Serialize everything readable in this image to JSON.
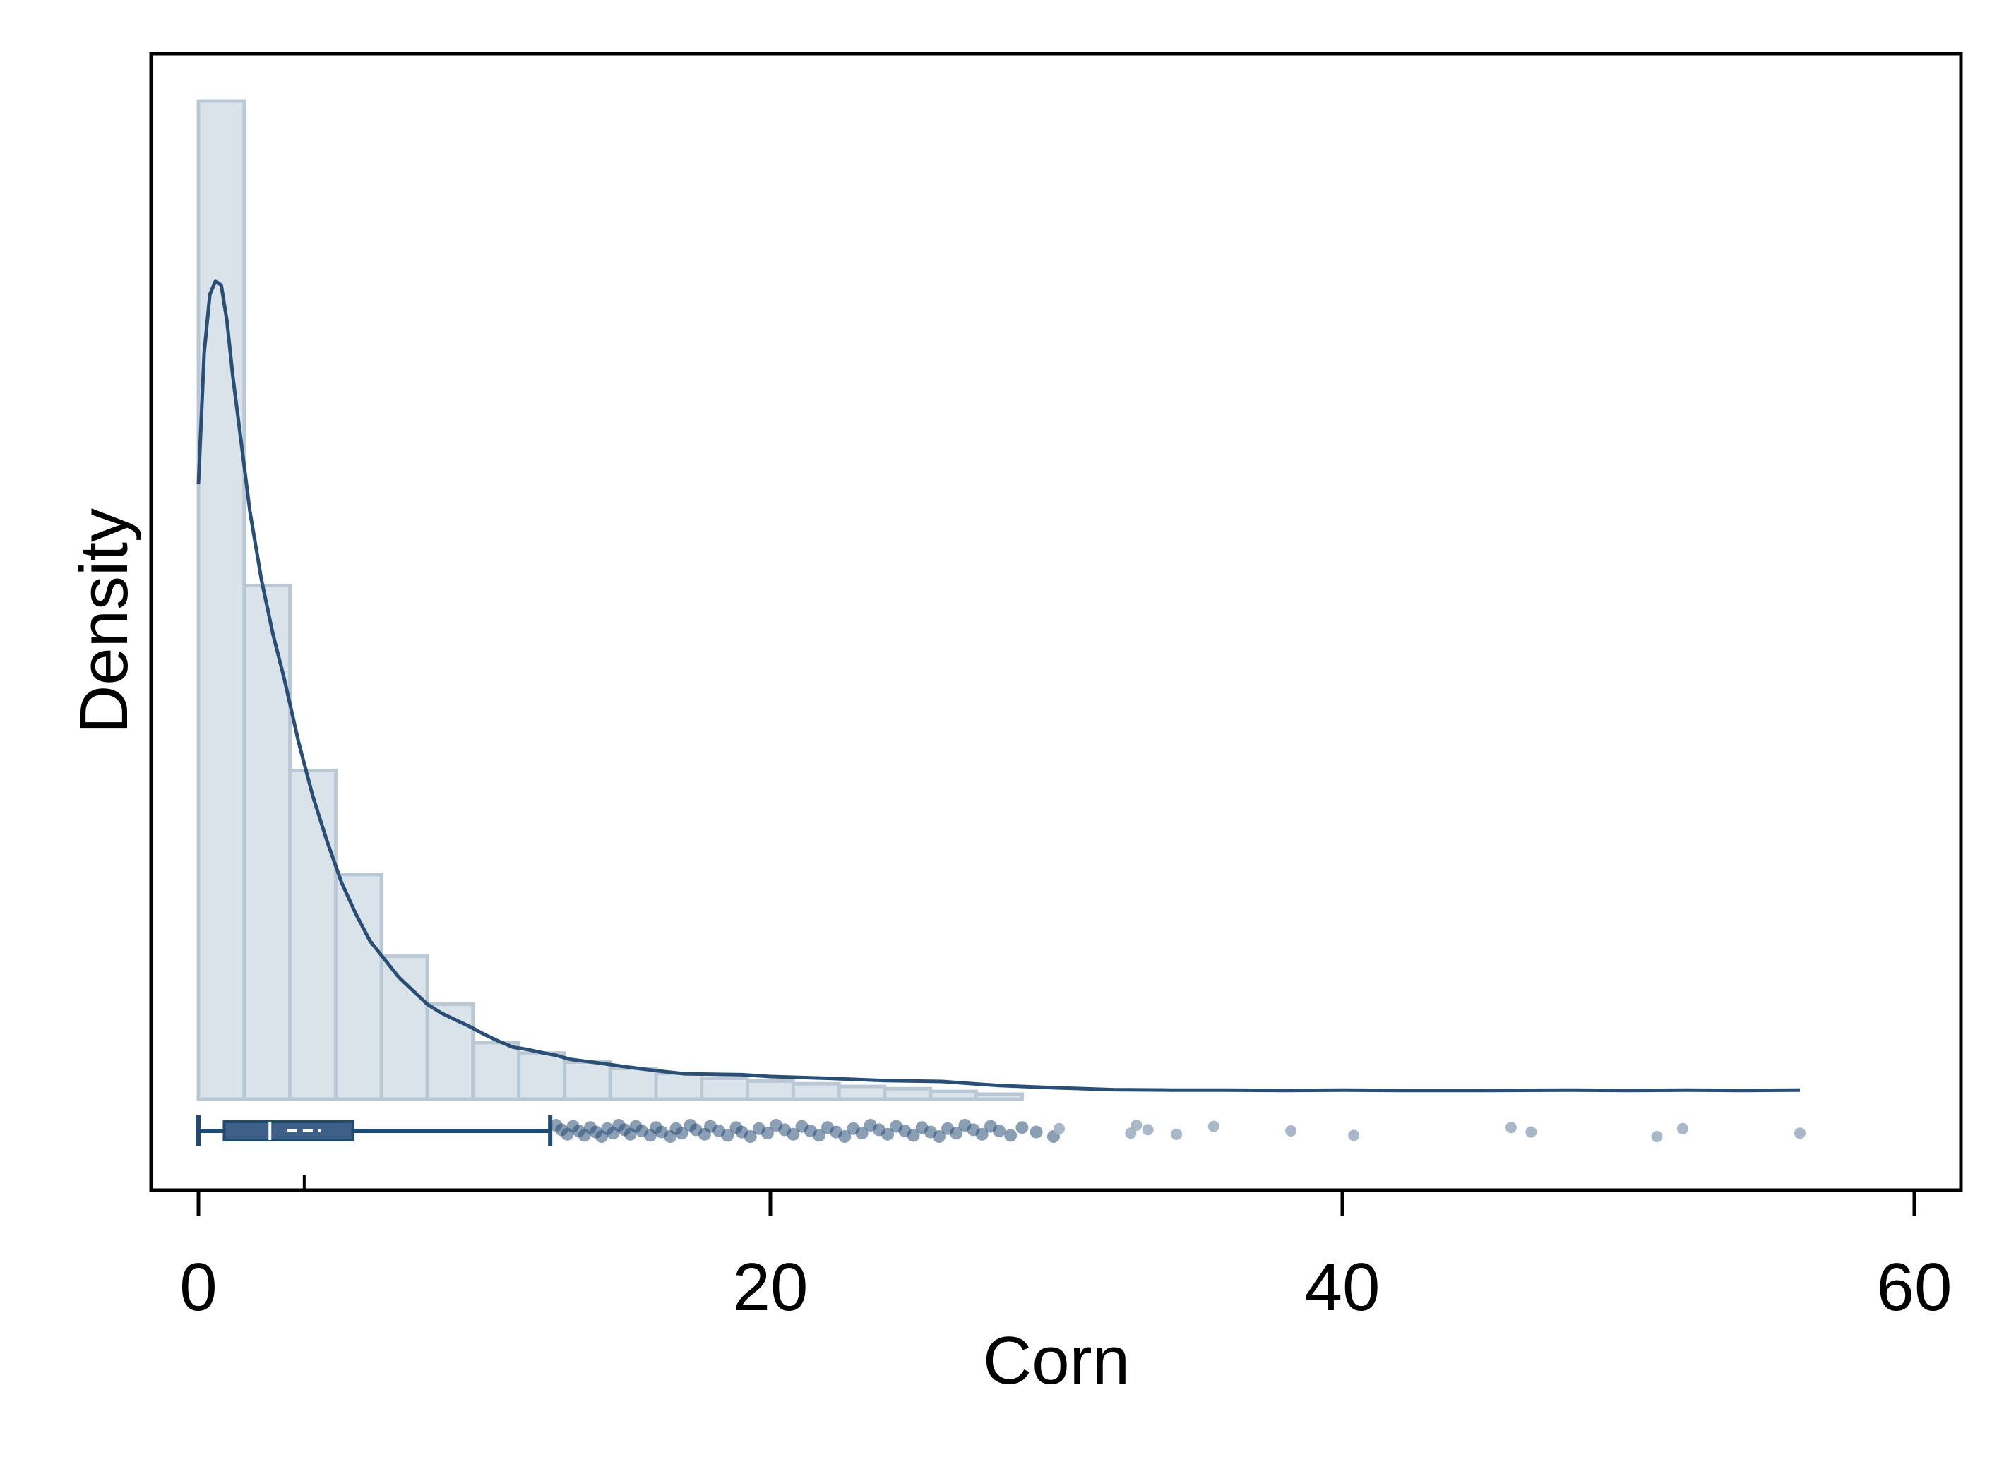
{
  "chart_data": {
    "type": "histogram",
    "title": "",
    "xlabel": "Corn",
    "ylabel": "Density",
    "xlim": [
      -0.8,
      61.5
    ],
    "x_ticks": [
      0,
      20,
      40,
      60
    ],
    "x_tick_labels": [
      "0",
      "20",
      "40",
      "60"
    ],
    "y_ticks_shown": false,
    "grid": false,
    "legend": "none",
    "colors": {
      "bar_fill": "#dbe3ea",
      "bar_edge": "#b9c8d4",
      "density_line": "#2a4f77",
      "box": "#3e6088",
      "whisker": "#1f4a72",
      "point": "#2a4f77",
      "point_faint": "#9fb0c2"
    },
    "histogram": {
      "bin_edges": [
        0,
        1.6,
        3.2,
        4.8,
        6.4,
        8.0,
        9.6,
        11.2,
        12.8,
        14.4,
        16.0,
        17.6,
        19.2,
        20.8,
        22.4,
        24.0,
        25.6,
        27.2,
        28.8
      ],
      "density": [
        0.2208,
        0.1136,
        0.0727,
        0.0497,
        0.0316,
        0.021,
        0.0125,
        0.0102,
        0.0082,
        0.0068,
        0.0057,
        0.0046,
        0.004,
        0.0034,
        0.0028,
        0.0023,
        0.0017,
        0.0011
      ]
    },
    "density_curve": {
      "x": [
        0,
        0.2,
        0.4,
        0.6,
        0.8,
        1.0,
        1.2,
        1.5,
        1.8,
        2.2,
        2.6,
        3.0,
        3.5,
        4.0,
        4.5,
        5.0,
        5.5,
        6.0,
        6.5,
        7.0,
        7.5,
        8.0,
        8.5,
        9.0,
        9.5,
        10.0,
        10.5,
        11.0,
        11.5,
        12.0,
        12.5,
        13.0,
        14.0,
        15.0,
        16.0,
        17.0,
        18.0,
        19.0,
        20.0,
        21.0,
        22.0,
        24.0,
        26.0,
        28.0,
        30.0,
        32.0,
        34.0,
        36.0,
        38.0,
        40.0,
        42.0,
        45.0,
        48.0,
        50.0,
        52.0,
        54.0,
        56.0
      ],
      "y": [
        0.136,
        0.165,
        0.178,
        0.181,
        0.18,
        0.172,
        0.16,
        0.145,
        0.13,
        0.115,
        0.103,
        0.093,
        0.079,
        0.067,
        0.057,
        0.048,
        0.041,
        0.035,
        0.031,
        0.027,
        0.024,
        0.021,
        0.019,
        0.0175,
        0.016,
        0.0143,
        0.0128,
        0.0115,
        0.011,
        0.0103,
        0.0097,
        0.0088,
        0.008,
        0.0071,
        0.0063,
        0.0056,
        0.0055,
        0.0054,
        0.005,
        0.0048,
        0.0046,
        0.0041,
        0.0039,
        0.003,
        0.0025,
        0.0021,
        0.002,
        0.002,
        0.0019,
        0.002,
        0.0019,
        0.0019,
        0.002,
        0.0019,
        0.002,
        0.0019,
        0.002
      ]
    },
    "boxplot": {
      "min": 0,
      "q1": 0.9,
      "median": 2.5,
      "q3": 5.4,
      "whisker_high": 12.3,
      "mean": 3.7
    },
    "outliers": [
      12.5,
      12.7,
      12.9,
      13.1,
      13.3,
      13.5,
      13.7,
      13.9,
      14.1,
      14.3,
      14.5,
      14.7,
      14.9,
      15.1,
      15.3,
      15.5,
      15.8,
      16.0,
      16.2,
      16.5,
      16.7,
      16.9,
      17.2,
      17.4,
      17.7,
      17.9,
      18.2,
      18.5,
      18.8,
      19.0,
      19.3,
      19.6,
      19.9,
      20.2,
      20.5,
      20.8,
      21.1,
      21.4,
      21.7,
      22.0,
      22.3,
      22.6,
      22.9,
      23.2,
      23.5,
      23.8,
      24.1,
      24.4,
      24.7,
      25.0,
      25.3,
      25.6,
      25.9,
      26.2,
      26.5,
      26.8,
      27.1,
      27.4,
      27.7,
      28.0,
      28.4,
      28.8,
      29.3,
      29.9,
      30.1,
      32.6,
      32.8,
      33.2,
      34.2,
      35.5,
      38.2,
      40.4,
      45.9,
      46.6,
      51.0,
      51.9,
      56.0
    ]
  }
}
